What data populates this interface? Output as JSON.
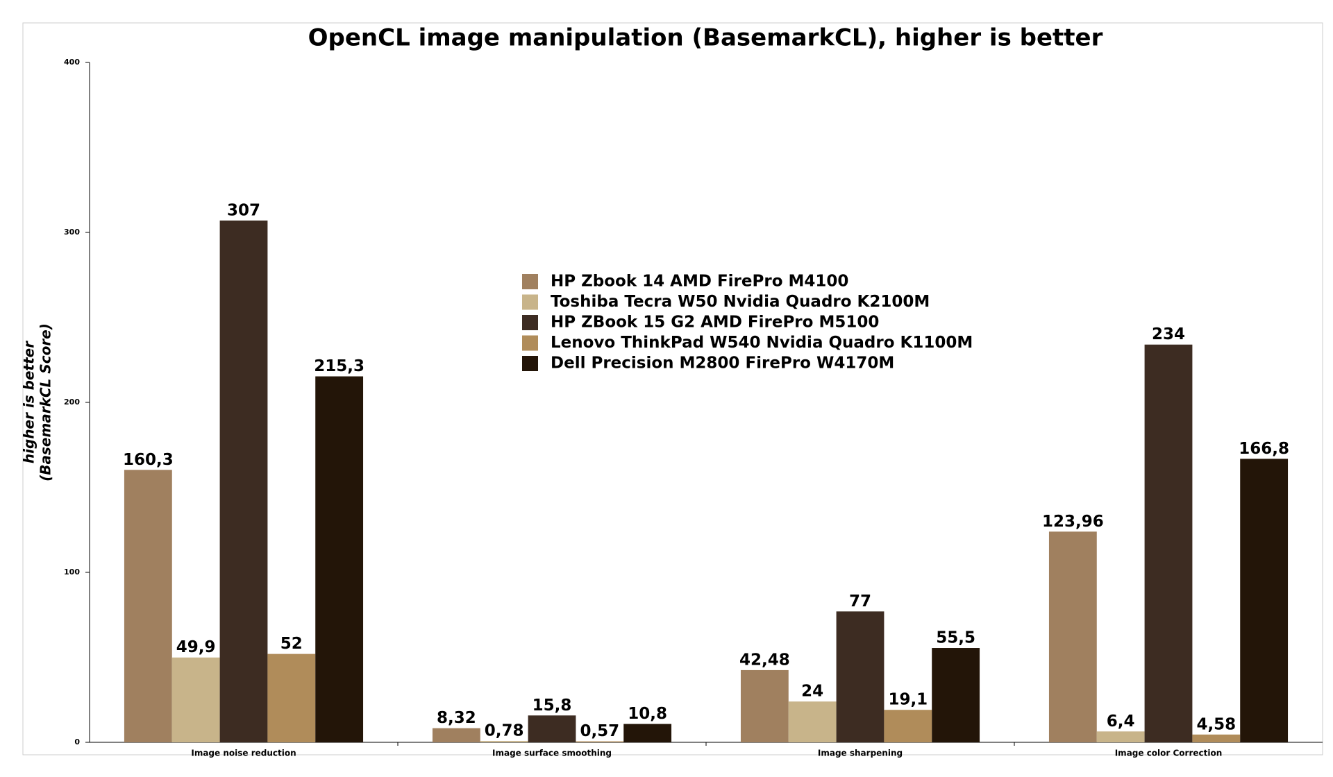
{
  "chart_data": {
    "type": "bar",
    "title": "OpenCL image manipulation (BasemarkCL), higher is better",
    "y_label": [
      "higher is better",
      "(BasemarkCL Score)"
    ],
    "categories": [
      "Image noise reduction",
      "Image surface smoothing",
      "Image sharpening",
      "Image color Correction"
    ],
    "series": [
      {
        "name": "HP Zbook 14 AMD FirePro M4100",
        "color": "#a0805f",
        "values": [
          160.3,
          8.32,
          42.48,
          123.96
        ],
        "value_labels": [
          "160,3",
          "8,32",
          "42,48",
          "123,96"
        ]
      },
      {
        "name": "Toshiba Tecra W50 Nvidia Quadro K2100M",
        "color": "#c8b48a",
        "values": [
          49.9,
          0.78,
          24,
          6.4
        ],
        "value_labels": [
          "49,9",
          "0,78",
          "24",
          "6,4"
        ]
      },
      {
        "name": "HP ZBook 15 G2 AMD FirePro M5100",
        "color": "#3d2c22",
        "values": [
          307,
          15.8,
          77,
          234
        ],
        "value_labels": [
          "307",
          "15,8",
          "77",
          "234"
        ]
      },
      {
        "name": "Lenovo ThinkPad W540 Nvidia Quadro K1100M",
        "color": "#b08c5a",
        "values": [
          52,
          0.57,
          19.1,
          4.58
        ],
        "value_labels": [
          "52",
          "0,57",
          "19,1",
          "4,58"
        ]
      },
      {
        "name": "Dell Precision M2800 FirePro W4170M",
        "color": "#231508",
        "values": [
          215.3,
          10.8,
          55.5,
          166.8
        ],
        "value_labels": [
          "215,3",
          "10,8",
          "55,5",
          "166,8"
        ]
      }
    ],
    "ylim": [
      0,
      400
    ],
    "yticks": [
      0,
      100,
      200,
      300,
      400
    ],
    "grid": false
  }
}
